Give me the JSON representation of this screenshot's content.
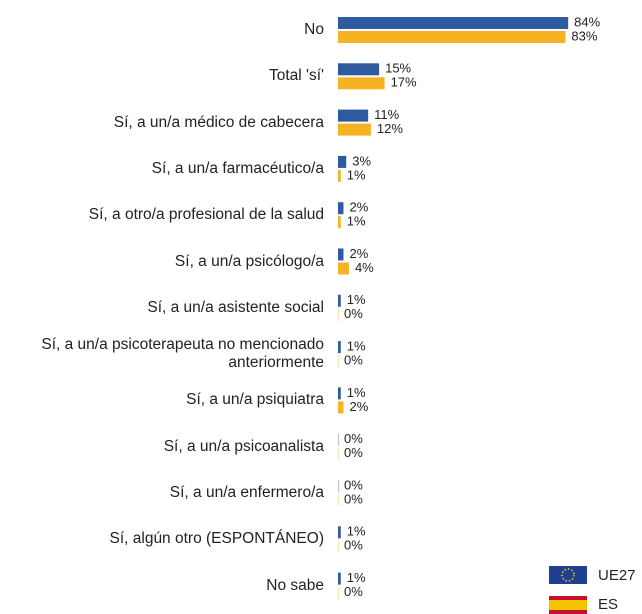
{
  "chart_data": {
    "type": "bar",
    "orientation": "horizontal",
    "categories": [
      "No",
      "Total 'sí'",
      "Sí, a un/a médico de cabecera",
      "Sí, a un/a farmacéutico/a",
      "Sí, a otro/a profesional de la salud",
      "Sí, a un/a psicólogo/a",
      "Sí, a un/a asistente social",
      "Sí, a un/a psicoterapeuta no mencionado anteriormente",
      "Sí, a un/a psiquiatra",
      "Sí, a un/a psicoanalista",
      "Sí, a un/a enfermero/a",
      "Sí, algún otro (ESPONTÁNEO)",
      "No sabe"
    ],
    "series": [
      {
        "name": "UE27",
        "color": "#2e5aa0",
        "values": [
          84,
          15,
          11,
          3,
          2,
          2,
          1,
          1,
          1,
          0,
          0,
          1,
          1
        ],
        "value_labels": [
          "84%",
          "15%",
          "11%",
          "3%",
          "2%",
          "2%",
          "1%",
          "1%",
          "1%",
          "0%",
          "0%",
          "1%",
          "1%"
        ]
      },
      {
        "name": "ES",
        "color": "#f5b324",
        "values": [
          83,
          17,
          12,
          1,
          1,
          4,
          0,
          0,
          2,
          0,
          0,
          0,
          0
        ],
        "value_labels": [
          "83%",
          "17%",
          "12%",
          "1%",
          "1%",
          "4%",
          "0%",
          "0%",
          "2%",
          "0%",
          "0%",
          "0%",
          "0%"
        ]
      }
    ],
    "xlim": [
      0,
      100
    ]
  }
}
